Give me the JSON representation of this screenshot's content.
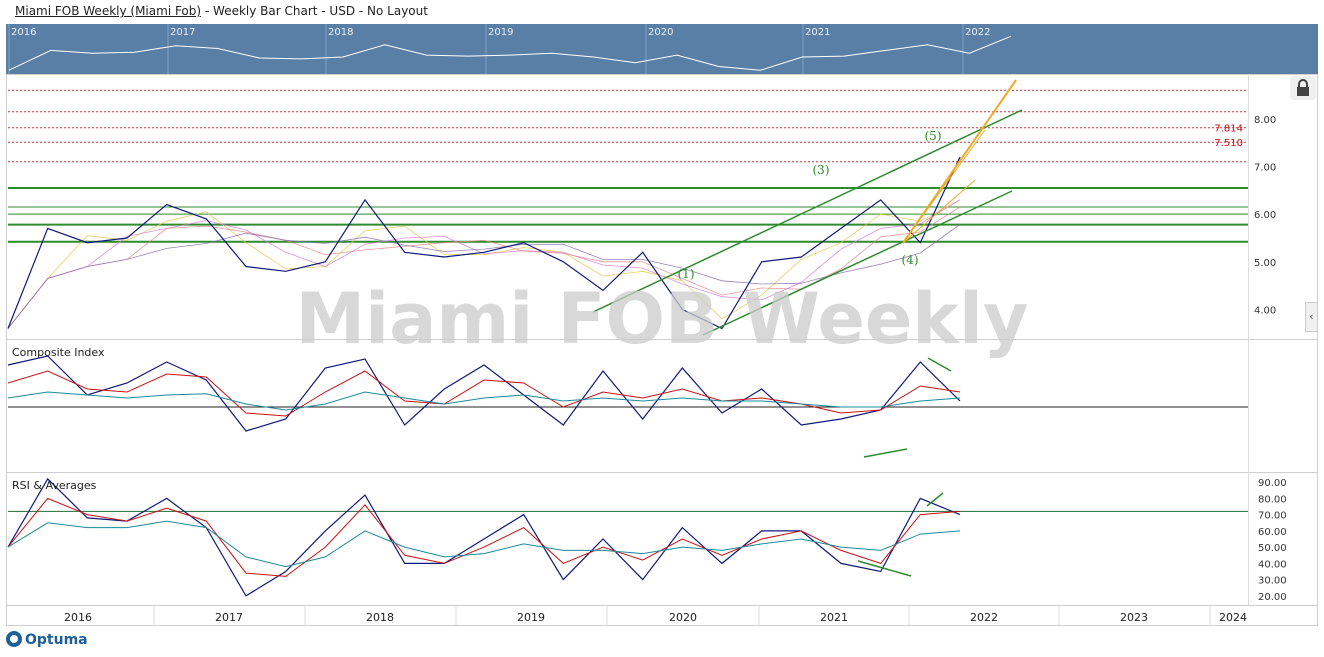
{
  "header": {
    "symbol_link": "Miami FOB Weekly (Miami Fob)",
    "subtitle": " - Weekly Bar Chart - USD - No Layout"
  },
  "navigator": {
    "years": [
      "2016",
      "2017",
      "2018",
      "2019",
      "2020",
      "2021",
      "2022"
    ]
  },
  "watermark": "Miami FOB Weekly",
  "brand": "Optuma",
  "colors": {
    "price": "#101a7a",
    "ma_red": "#cc1111",
    "ma_teal": "#1d8a9a",
    "trendline": "#2e8b2e",
    "fan": "#f2a92a",
    "resistance_dotted": "#cc3333",
    "nav_bg": "#5a7fa6"
  },
  "chart_data": [
    {
      "type": "line",
      "panel": "price",
      "ylim": [
        3.4,
        8.9
      ],
      "yticks": [
        "4.00",
        "5.00",
        "6.00",
        "7.00",
        "8.00"
      ],
      "price_labels": [
        "7.814",
        "7.510"
      ],
      "wave_labels": [
        "(1)",
        "(3)",
        "(4)",
        "(5)"
      ],
      "x": [
        "2016-01",
        "2016-04",
        "2016-07",
        "2016-10",
        "2017-01",
        "2017-04",
        "2017-07",
        "2017-10",
        "2018-01",
        "2018-04",
        "2018-07",
        "2018-10",
        "2019-01",
        "2019-04",
        "2019-07",
        "2019-10",
        "2020-01",
        "2020-04",
        "2020-07",
        "2020-10",
        "2021-01",
        "2021-04",
        "2021-07",
        "2021-10",
        "2022-01"
      ],
      "series": [
        {
          "values": [
            3.6,
            5.7,
            5.4,
            5.5,
            6.2,
            5.9,
            4.9,
            4.8,
            5.0,
            6.3,
            5.2,
            5.1,
            5.2,
            5.4,
            5.0,
            4.4,
            5.2,
            4.0,
            3.6,
            5.0,
            5.1,
            5.7,
            6.3,
            5.4,
            7.2
          ]
        }
      ]
    },
    {
      "type": "line",
      "panel": "composite",
      "title": "Composite Index",
      "x": [
        "2016-01",
        "2016-04",
        "2016-07",
        "2016-10",
        "2017-01",
        "2017-04",
        "2017-07",
        "2017-10",
        "2018-01",
        "2018-04",
        "2018-07",
        "2018-10",
        "2019-01",
        "2019-04",
        "2019-07",
        "2019-10",
        "2020-01",
        "2020-04",
        "2020-07",
        "2020-10",
        "2021-01",
        "2021-04",
        "2021-07",
        "2021-10",
        "2022-01"
      ],
      "series": [
        {
          "values": [
            70,
            85,
            20,
            40,
            75,
            45,
            -40,
            -20,
            65,
            80,
            -30,
            30,
            70,
            20,
            -30,
            60,
            -20,
            65,
            -10,
            30,
            -30,
            -20,
            -5,
            75,
            10
          ]
        },
        {
          "values": [
            40,
            60,
            30,
            25,
            55,
            50,
            -10,
            -15,
            25,
            60,
            10,
            5,
            45,
            40,
            0,
            25,
            15,
            30,
            10,
            15,
            5,
            -10,
            -5,
            35,
            25
          ]
        },
        {
          "values": [
            15,
            25,
            20,
            15,
            20,
            22,
            5,
            -5,
            5,
            25,
            15,
            5,
            15,
            20,
            10,
            15,
            10,
            15,
            10,
            10,
            5,
            0,
            0,
            10,
            15
          ]
        }
      ]
    },
    {
      "type": "line",
      "panel": "rsi",
      "title": "RSI & Averages",
      "ylim": [
        15,
        95
      ],
      "yticks": [
        "20.00",
        "30.00",
        "40.00",
        "50.00",
        "60.00",
        "70.00",
        "80.00",
        "90.00"
      ],
      "x": [
        "2016-01",
        "2016-04",
        "2016-07",
        "2016-10",
        "2017-01",
        "2017-04",
        "2017-07",
        "2017-10",
        "2018-01",
        "2018-04",
        "2018-07",
        "2018-10",
        "2019-01",
        "2019-04",
        "2019-07",
        "2019-10",
        "2020-01",
        "2020-04",
        "2020-07",
        "2020-10",
        "2021-01",
        "2021-04",
        "2021-07",
        "2021-10",
        "2022-01"
      ],
      "series": [
        {
          "values": [
            50,
            92,
            68,
            66,
            80,
            62,
            20,
            35,
            60,
            82,
            40,
            40,
            55,
            70,
            30,
            55,
            30,
            62,
            40,
            60,
            60,
            40,
            35,
            80,
            70
          ]
        },
        {
          "values": [
            50,
            80,
            70,
            66,
            74,
            66,
            34,
            32,
            50,
            76,
            45,
            40,
            50,
            62,
            40,
            50,
            42,
            55,
            45,
            55,
            60,
            48,
            40,
            70,
            72
          ]
        },
        {
          "values": [
            50,
            65,
            62,
            62,
            66,
            62,
            44,
            38,
            44,
            60,
            50,
            44,
            46,
            52,
            48,
            48,
            46,
            50,
            48,
            52,
            55,
            50,
            48,
            58,
            60
          ]
        }
      ]
    }
  ],
  "x_axis": {
    "years": [
      "2016",
      "2017",
      "2018",
      "2019",
      "2020",
      "2021",
      "2022",
      "2023",
      "2024"
    ]
  }
}
